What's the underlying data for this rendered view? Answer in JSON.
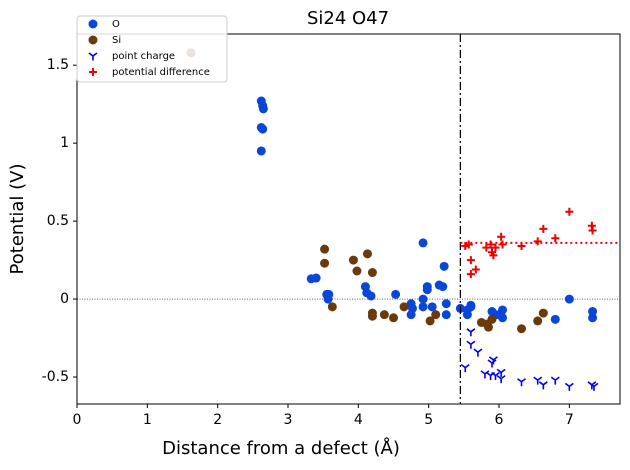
{
  "chart_data": {
    "type": "scatter",
    "title": "Si24 O47",
    "x_label": "Distance from a defect (Å)",
    "y_label": "Potential (V)",
    "xlim": [
      0,
      7.72
    ],
    "ylim": [
      -0.673,
      1.7
    ],
    "xticks": [
      0,
      1,
      2,
      3,
      4,
      5,
      6,
      7
    ],
    "yticks": [
      -0.5,
      0,
      0.5,
      1,
      1.5
    ],
    "vline_x": 5.45,
    "hline_y": 0.36,
    "zero_line_y": 0,
    "legend": "upper left",
    "series": [
      {
        "name": "O",
        "color": "#0a47d9",
        "marker": "circle",
        "x": [
          2.62,
          2.64,
          2.65,
          2.62,
          2.64,
          2.62,
          3.33,
          3.4,
          3.55,
          3.58,
          3.57,
          4.1,
          4.12,
          4.18,
          4.53,
          4.75,
          4.77,
          4.75,
          4.92,
          4.92,
          4.98,
          4.98,
          4.92,
          5.05,
          5.15,
          5.2,
          5.22,
          5.25,
          5.25,
          5.45,
          5.55,
          5.55,
          5.6,
          5.6,
          5.9,
          5.95,
          6.05,
          6.05,
          6.0,
          6.8,
          7.0,
          7.33,
          7.33
        ],
        "y": [
          1.27,
          1.24,
          1.22,
          1.1,
          1.09,
          0.95,
          0.13,
          0.135,
          0.03,
          0.03,
          0,
          0.08,
          0.04,
          0.02,
          0.03,
          -0.03,
          -0.06,
          -0.1,
          0.36,
          0,
          0.08,
          0.06,
          -0.05,
          -0.05,
          0.09,
          0.08,
          0.21,
          -0.03,
          -0.1,
          -0.06,
          -0.07,
          -0.1,
          -0.04,
          -0.05,
          -0.08,
          -0.1,
          -0.07,
          -0.12,
          -0.1,
          -0.13,
          0,
          -0.08,
          -0.12
        ]
      },
      {
        "name": "Si",
        "color": "#6b3a0a",
        "marker": "circle",
        "x": [
          1.62,
          3.52,
          3.52,
          3.63,
          3.93,
          3.98,
          4.13,
          4.2,
          4.2,
          4.2,
          4.37,
          4.5,
          4.65,
          5.02,
          5.1,
          5.75,
          5.83,
          5.85,
          5.9,
          6.32,
          6.55,
          6.63
        ],
        "y": [
          1.58,
          0.32,
          0.23,
          -0.05,
          0.25,
          0.18,
          0.29,
          0.17,
          -0.09,
          -0.11,
          -0.1,
          -0.12,
          -0.05,
          -0.14,
          -0.1,
          -0.15,
          -0.16,
          -0.18,
          -0.13,
          -0.19,
          -0.14,
          -0.09
        ]
      },
      {
        "name": "point charge",
        "color": "#0000ee",
        "marker": "tri_down",
        "x": [
          5.52,
          5.6,
          5.6,
          5.7,
          5.8,
          5.88,
          5.92,
          5.9,
          5.95,
          6.03,
          6.03,
          6.32,
          6.55,
          6.63,
          6.8,
          7.0,
          7.32,
          7.35
        ],
        "y": [
          -0.44,
          -0.21,
          -0.29,
          -0.34,
          -0.48,
          -0.49,
          -0.39,
          -0.41,
          -0.49,
          -0.47,
          -0.51,
          -0.53,
          -0.52,
          -0.55,
          -0.52,
          -0.56,
          -0.55,
          -0.56
        ]
      },
      {
        "name": "potential difference",
        "color": "#ee0000",
        "marker": "plus",
        "x": [
          5.52,
          5.57,
          5.6,
          5.6,
          5.67,
          5.82,
          5.88,
          5.9,
          5.92,
          5.95,
          6.03,
          6.05,
          6.32,
          6.55,
          6.63,
          6.8,
          7.0,
          7.32,
          7.33
        ],
        "y": [
          0.34,
          0.35,
          0.25,
          0.16,
          0.19,
          0.33,
          0.35,
          0.3,
          0.28,
          0.33,
          0.4,
          0.35,
          0.34,
          0.37,
          0.45,
          0.39,
          0.56,
          0.47,
          0.44
        ]
      }
    ]
  }
}
